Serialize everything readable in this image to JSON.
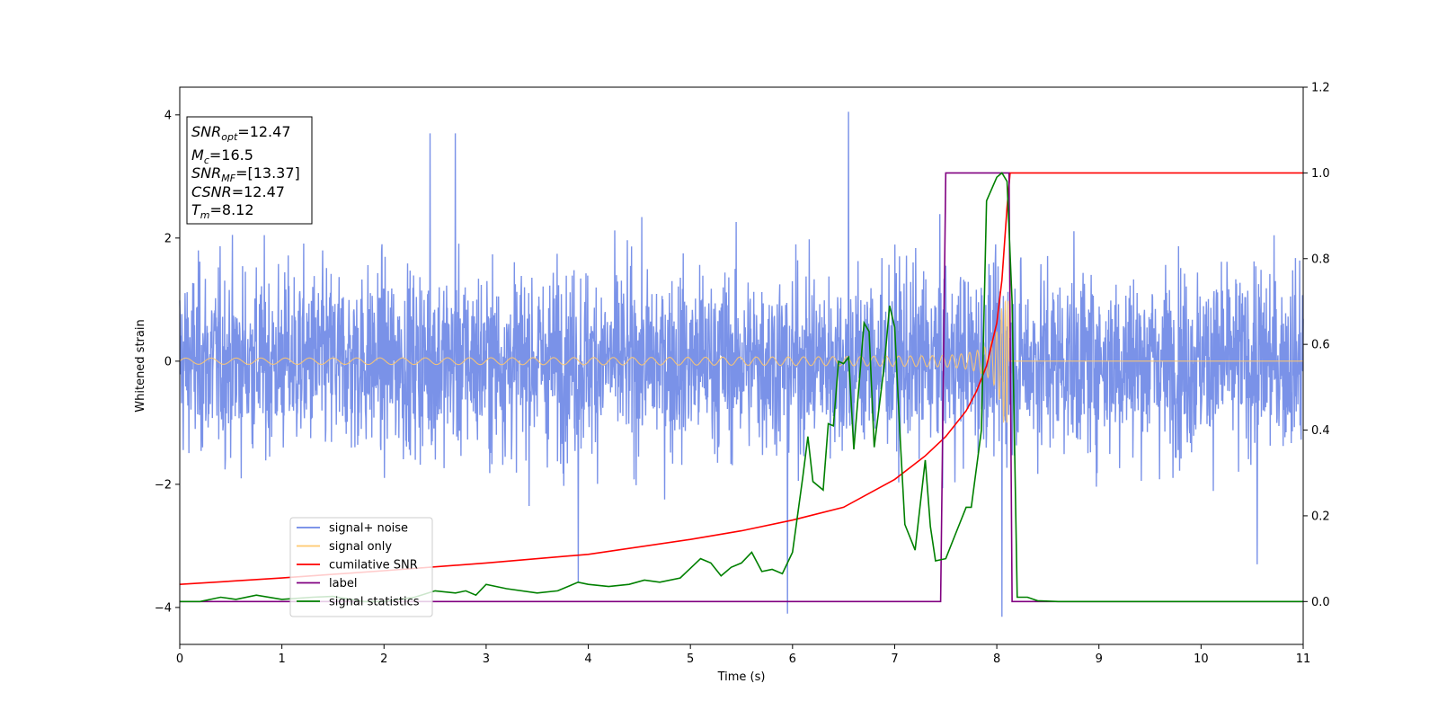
{
  "chart_data": {
    "type": "line",
    "title": "",
    "xlabel": "Time (s)",
    "ylabel": "Whitened strain",
    "xlim": [
      0,
      11
    ],
    "ylim": [
      -4.6,
      4.45
    ],
    "y2lim": [
      -0.1,
      1.2
    ],
    "xticks": [
      "0",
      "1",
      "2",
      "3",
      "4",
      "5",
      "6",
      "7",
      "8",
      "9",
      "10",
      "11"
    ],
    "yticks": [
      "−4",
      "−2",
      "0",
      "2",
      "4"
    ],
    "y2ticks": [
      "0.0",
      "0.2",
      "0.4",
      "0.6",
      "0.8",
      "1.0",
      "1.2"
    ],
    "grid": false,
    "legend_position": "lower-left",
    "annotation": {
      "snr_opt": {
        "base": "SNR",
        "sub": "opt",
        "value": "=12.47"
      },
      "mc": {
        "base": "M",
        "sub": "c",
        "value": "=16.5"
      },
      "snr_mf": {
        "base": "SNR",
        "sub": "MF",
        "value": "=[13.37]"
      },
      "csnr": {
        "base": "CSNR",
        "sub": "",
        "value": "=12.47"
      },
      "tm": {
        "base": "T",
        "sub": "m",
        "value": "=8.12"
      }
    },
    "series": [
      {
        "name": "signal+ noise",
        "color": "#6b86e6",
        "axis": "left",
        "description": "noisy whitened strain, amplitude roughly ±2.5 with spikes to ±3.9, across 0–11 s",
        "spikes": [
          [
            2.45,
            3.7
          ],
          [
            2.7,
            3.7
          ],
          [
            6.55,
            4.05
          ],
          [
            8.05,
            -4.15
          ],
          [
            5.95,
            -4.1
          ],
          [
            3.9,
            -3.6
          ],
          [
            10.55,
            -3.3
          ]
        ]
      },
      {
        "name": "signal only",
        "color": "#ffc86e",
        "axis": "left",
        "description": "chirp from 0 to 8.12 s, amplitude growing from 0.05 to about 1.0, then flat 0",
        "merger_time": 8.12
      },
      {
        "name": "cumilative SNR",
        "color": "#ff0000",
        "axis": "right",
        "points": [
          [
            0,
            0.04
          ],
          [
            1,
            0.055
          ],
          [
            2,
            0.072
          ],
          [
            3,
            0.09
          ],
          [
            4,
            0.11
          ],
          [
            5,
            0.145
          ],
          [
            5.5,
            0.165
          ],
          [
            6,
            0.19
          ],
          [
            6.5,
            0.22
          ],
          [
            7,
            0.285
          ],
          [
            7.3,
            0.34
          ],
          [
            7.5,
            0.385
          ],
          [
            7.7,
            0.445
          ],
          [
            7.8,
            0.49
          ],
          [
            7.9,
            0.55
          ],
          [
            8.0,
            0.65
          ],
          [
            8.05,
            0.75
          ],
          [
            8.1,
            0.92
          ],
          [
            8.13,
            1.0
          ],
          [
            11,
            1.0
          ]
        ]
      },
      {
        "name": "label",
        "color": "#800080",
        "axis": "right",
        "points": [
          [
            0,
            0.0
          ],
          [
            7.45,
            0.0
          ],
          [
            7.5,
            1.0
          ],
          [
            8.12,
            1.0
          ],
          [
            8.15,
            0.0
          ],
          [
            11,
            0.0
          ]
        ]
      },
      {
        "name": "signal statistics",
        "color": "#008000",
        "axis": "right",
        "points": [
          [
            0,
            0.0
          ],
          [
            0.2,
            0.0
          ],
          [
            0.4,
            0.01
          ],
          [
            0.55,
            0.005
          ],
          [
            0.75,
            0.015
          ],
          [
            1.0,
            0.005
          ],
          [
            1.3,
            0.01
          ],
          [
            1.5,
            0.012
          ],
          [
            1.8,
            0.0
          ],
          [
            2.0,
            0.0
          ],
          [
            2.3,
            0.01
          ],
          [
            2.5,
            0.025
          ],
          [
            2.7,
            0.02
          ],
          [
            2.8,
            0.025
          ],
          [
            2.9,
            0.015
          ],
          [
            3.0,
            0.04
          ],
          [
            3.2,
            0.03
          ],
          [
            3.5,
            0.02
          ],
          [
            3.7,
            0.025
          ],
          [
            3.9,
            0.045
          ],
          [
            4.0,
            0.04
          ],
          [
            4.2,
            0.035
          ],
          [
            4.4,
            0.04
          ],
          [
            4.55,
            0.05
          ],
          [
            4.7,
            0.045
          ],
          [
            4.9,
            0.055
          ],
          [
            5.1,
            0.1
          ],
          [
            5.2,
            0.09
          ],
          [
            5.3,
            0.06
          ],
          [
            5.4,
            0.08
          ],
          [
            5.5,
            0.09
          ],
          [
            5.6,
            0.115
          ],
          [
            5.7,
            0.07
          ],
          [
            5.8,
            0.075
          ],
          [
            5.9,
            0.065
          ],
          [
            6.0,
            0.115
          ],
          [
            6.1,
            0.29
          ],
          [
            6.15,
            0.385
          ],
          [
            6.2,
            0.28
          ],
          [
            6.3,
            0.26
          ],
          [
            6.35,
            0.415
          ],
          [
            6.4,
            0.41
          ],
          [
            6.45,
            0.56
          ],
          [
            6.5,
            0.555
          ],
          [
            6.55,
            0.57
          ],
          [
            6.6,
            0.355
          ],
          [
            6.7,
            0.65
          ],
          [
            6.75,
            0.63
          ],
          [
            6.8,
            0.36
          ],
          [
            6.9,
            0.555
          ],
          [
            6.95,
            0.69
          ],
          [
            7.0,
            0.64
          ],
          [
            7.05,
            0.4
          ],
          [
            7.1,
            0.18
          ],
          [
            7.2,
            0.12
          ],
          [
            7.3,
            0.33
          ],
          [
            7.35,
            0.175
          ],
          [
            7.4,
            0.095
          ],
          [
            7.5,
            0.1
          ],
          [
            7.6,
            0.16
          ],
          [
            7.7,
            0.22
          ],
          [
            7.75,
            0.22
          ],
          [
            7.85,
            0.4
          ],
          [
            7.9,
            0.935
          ],
          [
            8.0,
            0.99
          ],
          [
            8.05,
            1.0
          ],
          [
            8.1,
            0.98
          ],
          [
            8.15,
            0.7
          ],
          [
            8.2,
            0.01
          ],
          [
            8.3,
            0.01
          ],
          [
            8.4,
            0.002
          ],
          [
            8.6,
            0.0
          ],
          [
            11,
            0.0
          ]
        ]
      }
    ]
  }
}
